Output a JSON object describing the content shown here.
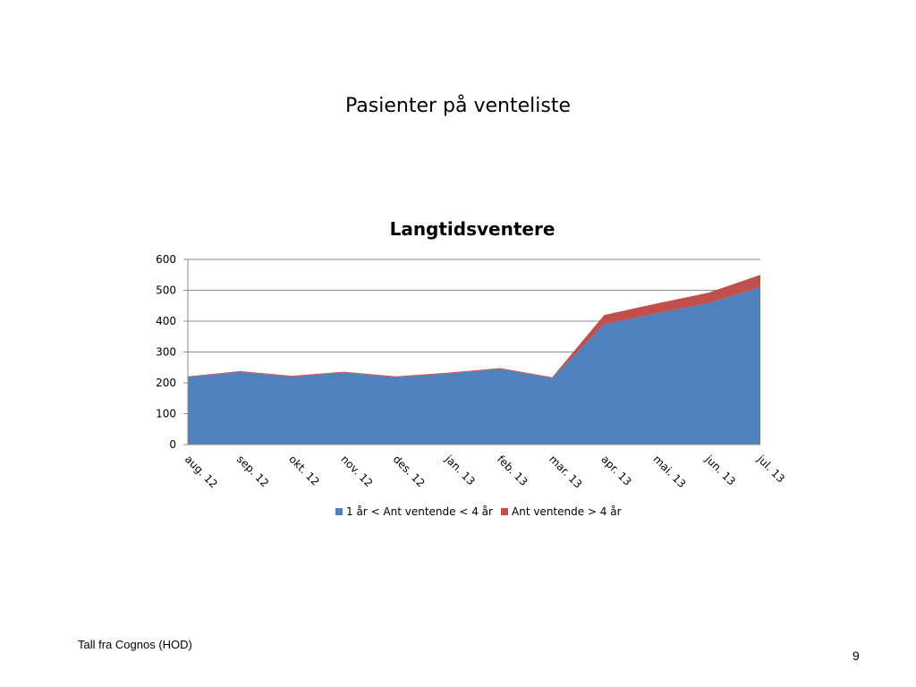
{
  "slide": {
    "title": "Pasienter på venteliste",
    "footer": "Tall fra Cognos (HOD)",
    "page_number": "9"
  },
  "chart_data": {
    "type": "area",
    "stacked": true,
    "title": "Langtidsventere",
    "xlabel": "",
    "ylabel": "",
    "ylim": [
      0,
      600
    ],
    "yticks": [
      0,
      100,
      200,
      300,
      400,
      500,
      600
    ],
    "grid": true,
    "legend_position": "bottom",
    "categories": [
      "aug. 12",
      "sep. 12",
      "okt. 12",
      "nov. 12",
      "des. 12",
      "jan. 13",
      "feb. 13",
      "mar. 13",
      "apr. 13",
      "mai. 13",
      "jun. 13",
      "jul. 13"
    ],
    "series": [
      {
        "name": "1 år < Ant ventende < 4 år",
        "color": "#4F81BD",
        "values": [
          218,
          235,
          220,
          233,
          218,
          230,
          245,
          215,
          390,
          425,
          458,
          510
        ]
      },
      {
        "name": "Ant ventende > 4 år",
        "color": "#C0504D",
        "values": [
          3,
          3,
          3,
          3,
          3,
          3,
          3,
          3,
          30,
          32,
          34,
          40
        ]
      }
    ]
  }
}
